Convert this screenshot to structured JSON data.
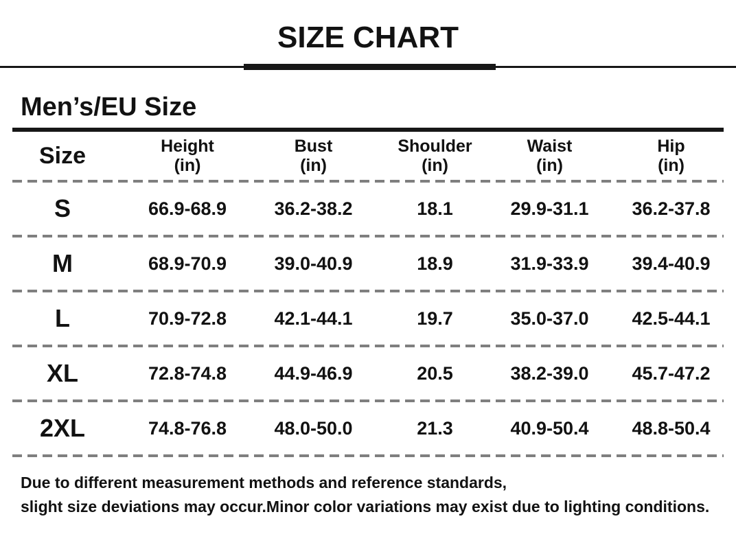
{
  "title": "SIZE CHART",
  "section_heading": "Men’s/EU Size",
  "table": {
    "headers": [
      {
        "label": "Size",
        "unit": ""
      },
      {
        "label": "Height",
        "unit": "(in)"
      },
      {
        "label": "Bust",
        "unit": "(in)"
      },
      {
        "label": "Shoulder",
        "unit": "(in)"
      },
      {
        "label": "Waist",
        "unit": "(in)"
      },
      {
        "label": "Hip",
        "unit": "(in)"
      }
    ],
    "rows": [
      {
        "size": "S",
        "height": "66.9-68.9",
        "bust": "36.2-38.2",
        "shoulder": "18.1",
        "waist": "29.9-31.1",
        "hip": "36.2-37.8"
      },
      {
        "size": "M",
        "height": "68.9-70.9",
        "bust": "39.0-40.9",
        "shoulder": "18.9",
        "waist": "31.9-33.9",
        "hip": "39.4-40.9"
      },
      {
        "size": "L",
        "height": "70.9-72.8",
        "bust": "42.1-44.1",
        "shoulder": "19.7",
        "waist": "35.0-37.0",
        "hip": "42.5-44.1"
      },
      {
        "size": "XL",
        "height": "72.8-74.8",
        "bust": "44.9-46.9",
        "shoulder": "20.5",
        "waist": "38.2-39.0",
        "hip": "45.7-47.2"
      },
      {
        "size": "2XL",
        "height": "74.8-76.8",
        "bust": "48.0-50.0",
        "shoulder": "21.3",
        "waist": "40.9-50.4",
        "hip": "48.8-50.4"
      }
    ]
  },
  "footer": {
    "line1": "Due to different measurement methods and reference standards,",
    "line2": "slight size deviations may occur.Minor color variations may exist due to lighting conditions."
  },
  "colors": {
    "text": "#121212",
    "rule": "#171717",
    "dashed_line": "#7f7f7f",
    "background": "#ffffff"
  },
  "chart_data": {
    "type": "table",
    "title": "SIZE CHART",
    "subtitle": "Men’s/EU Size",
    "columns": [
      "Size",
      "Height (in)",
      "Bust (in)",
      "Shoulder (in)",
      "Waist (in)",
      "Hip (in)"
    ],
    "rows": [
      [
        "S",
        "66.9-68.9",
        "36.2-38.2",
        "18.1",
        "29.9-31.1",
        "36.2-37.8"
      ],
      [
        "M",
        "68.9-70.9",
        "39.0-40.9",
        "18.9",
        "31.9-33.9",
        "39.4-40.9"
      ],
      [
        "L",
        "70.9-72.8",
        "42.1-44.1",
        "19.7",
        "35.0-37.0",
        "42.5-44.1"
      ],
      [
        "XL",
        "72.8-74.8",
        "44.9-46.9",
        "20.5",
        "38.2-39.0",
        "45.7-47.2"
      ],
      [
        "2XL",
        "74.8-76.8",
        "48.0-50.0",
        "21.3",
        "40.9-50.4",
        "48.8-50.4"
      ]
    ],
    "notes": [
      "Due to different measurement methods and reference standards,",
      "slight size deviations may occur.Minor color variations may exist due to lighting conditions."
    ]
  }
}
